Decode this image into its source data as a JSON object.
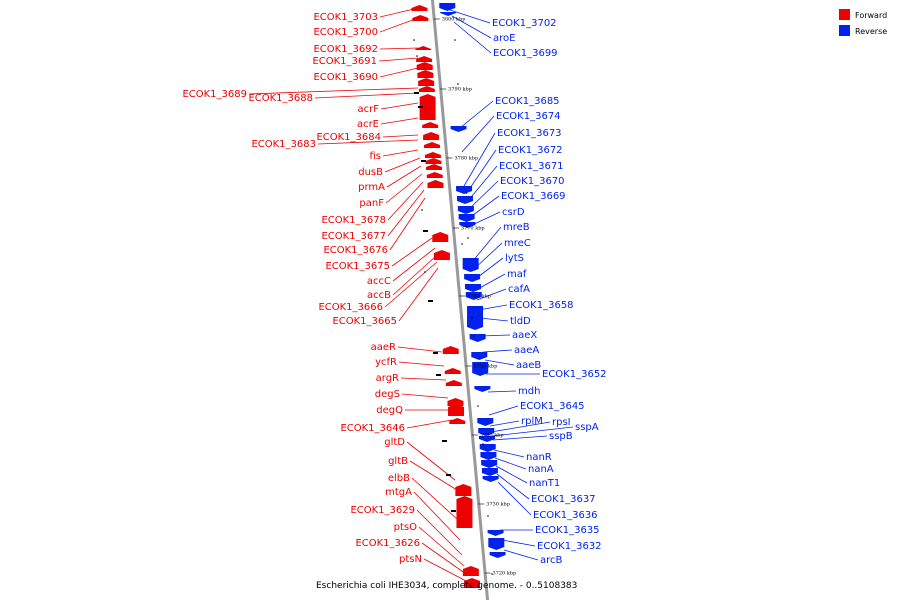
{
  "colors": {
    "forward": "#ee0000",
    "reverse": "#0022ee",
    "backbone": "#999999"
  },
  "legend": [
    {
      "label": "Forward",
      "color": "#ee0000"
    },
    {
      "label": "Reverse",
      "color": "#0022ee"
    }
  ],
  "caption": "Escherichia coli IHE3034, complete genome. - 0..5108383",
  "ticks": [
    "3800 kbp",
    "3790 kbp",
    "3780 kbp",
    "3770 kbp",
    "3760 kbp",
    "3750 kbp",
    "3740 kbp",
    "3730 kbp",
    "3720 kbp"
  ],
  "forward_genes": [
    "ECOK1_3703",
    "ECOK1_3700",
    "ECOK1_3692",
    "ECOK1_3691",
    "ECOK1_3690",
    "ECOK1_3689",
    "ECOK1_3688",
    "acrF",
    "acrE",
    "ECOK1_3684",
    "ECOK1_3683",
    "fis",
    "dusB",
    "prmA",
    "panF",
    "ECOK1_3678",
    "ECOK1_3677",
    "ECOK1_3676",
    "ECOK1_3675",
    "accC",
    "accB",
    "ECOK1_3666",
    "ECOK1_3665",
    "aaeR",
    "ycfR",
    "argR",
    "degS",
    "degQ",
    "ECOK1_3646",
    "gltD",
    "gltB",
    "elbB",
    "mtgA",
    "ECOK1_3629",
    "ptsO",
    "ECOK1_3626",
    "ptsN"
  ],
  "reverse_genes": [
    "ECOK1_3702",
    "aroE",
    "ECOK1_3699",
    "ECOK1_3685",
    "ECOK1_3674",
    "ECOK1_3673",
    "ECOK1_3672",
    "ECOK1_3671",
    "ECOK1_3670",
    "ECOK1_3669",
    "csrD",
    "mreB",
    "mreC",
    "lytS",
    "maf",
    "cafA",
    "ECOK1_3658",
    "tldD",
    "aaeX",
    "aaeA",
    "aaeB",
    "ECOK1_3652",
    "mdh",
    "ECOK1_3645",
    "rplM",
    "rpsI",
    "sspA",
    "sspB",
    "nanR",
    "nanA",
    "nanT1",
    "ECOK1_3637",
    "ECOK1_3636",
    "ECOK1_3635",
    "ECOK1_3632",
    "arcB"
  ]
}
